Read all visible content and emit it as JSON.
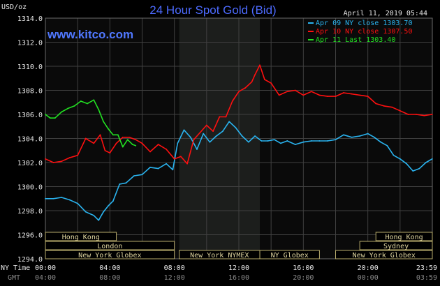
{
  "header": {
    "title": "24 Hour Spot Gold (Bid)",
    "site": "www.kitco.com",
    "datetime": "April 11, 2019 05:44",
    "unit": "USD/oz"
  },
  "time_labels": {
    "ny_title": "NY Time",
    "gmt_title": "GMT",
    "ny": [
      "00:00",
      "04:00",
      "08:00",
      "12:00",
      "16:00",
      "20:00",
      "23:59"
    ],
    "gmt": [
      "04:00",
      "08:00",
      "12:00",
      "16:00",
      "20:00",
      "00:00",
      "03:59"
    ]
  },
  "markets": [
    {
      "name": "Hong Kong",
      "start": 0,
      "end": 4.4
    },
    {
      "name": "London",
      "start": 0,
      "end": 8
    },
    {
      "name": "New York Globex",
      "start": 0,
      "end": 8
    },
    {
      "name": "New York NYMEX",
      "start": 8.3,
      "end": 13.3
    },
    {
      "name": "NY Globex",
      "start": 13.3,
      "end": 17
    },
    {
      "name": "Hong Kong",
      "start": 20.5,
      "end": 24
    },
    {
      "name": "Sydney",
      "start": 19.5,
      "end": 24
    },
    {
      "name": "New York Globex",
      "start": 18,
      "end": 24
    }
  ],
  "colors": {
    "background": "#000000",
    "plot": "#0a0a0a",
    "shade": "#1c1e1c",
    "grid": "#404040",
    "apr09": "#2ab4f0",
    "apr10": "#ff1010",
    "apr11": "#22e022",
    "title": "#4d6bff",
    "market_border": "#b8ac6c"
  },
  "chart_data": {
    "type": "line",
    "title": "24 Hour Spot Gold (Bid)",
    "ylabel": "USD/oz",
    "ylim": [
      1294,
      1314
    ],
    "yticks": [
      "1294.0",
      "1296.0",
      "1298.0",
      "1300.0",
      "1302.0",
      "1304.0",
      "1306.0",
      "1308.0",
      "1310.0",
      "1312.0",
      "1314.0"
    ],
    "xlim": [
      0,
      24
    ],
    "x_unit": "hours (NY time)",
    "shaded_region": [
      8.3,
      13.3
    ],
    "grid": true,
    "legend_position": "top-right",
    "series": [
      {
        "name": "Apr 09 NY close 1303.70",
        "color": "#2ab4f0",
        "x": [
          0,
          0.5,
          1,
          1.5,
          2,
          2.5,
          3,
          3.3,
          3.6,
          3.9,
          4.2,
          4.6,
          5,
          5.5,
          6,
          6.5,
          7,
          7.5,
          7.9,
          8.2,
          8.6,
          9,
          9.4,
          9.8,
          10.2,
          10.6,
          11,
          11.4,
          11.8,
          12.2,
          12.6,
          13,
          13.4,
          13.8,
          14.2,
          14.6,
          15,
          15.5,
          16,
          16.5,
          17,
          17.5,
          18,
          18.5,
          19,
          19.5,
          20,
          20.4,
          20.8,
          21.2,
          21.6,
          22,
          22.4,
          22.8,
          23.2,
          23.6,
          23.99
        ],
        "y": [
          1299.0,
          1299.0,
          1299.1,
          1298.9,
          1298.6,
          1297.9,
          1297.6,
          1297.2,
          1297.9,
          1298.4,
          1298.8,
          1300.2,
          1300.3,
          1300.9,
          1301.0,
          1301.6,
          1301.5,
          1301.9,
          1301.4,
          1303.6,
          1304.7,
          1304.1,
          1303.1,
          1304.4,
          1303.7,
          1304.2,
          1304.6,
          1305.4,
          1304.9,
          1304.2,
          1303.7,
          1304.2,
          1303.8,
          1303.8,
          1303.9,
          1303.6,
          1303.8,
          1303.5,
          1303.7,
          1303.8,
          1303.8,
          1303.8,
          1303.9,
          1304.3,
          1304.1,
          1304.2,
          1304.4,
          1304.1,
          1303.7,
          1303.4,
          1302.6,
          1302.3,
          1301.9,
          1301.3,
          1301.5,
          1302.0,
          1302.3
        ]
      },
      {
        "name": "Apr 10 NY close 1307.50",
        "color": "#ff1010",
        "x": [
          0,
          0.5,
          1,
          1.5,
          2,
          2.5,
          3,
          3.4,
          3.7,
          4,
          4.4,
          4.8,
          5.2,
          5.6,
          6,
          6.5,
          7,
          7.5,
          8,
          8.4,
          8.8,
          9.2,
          9.6,
          10,
          10.4,
          10.8,
          11.2,
          11.6,
          12,
          12.4,
          12.8,
          13,
          13.3,
          13.6,
          14,
          14.5,
          15,
          15.5,
          16,
          16.5,
          17,
          17.5,
          18,
          18.5,
          19,
          19.5,
          20,
          20.5,
          21,
          21.5,
          22,
          22.5,
          23,
          23.5,
          23.99
        ],
        "y": [
          1302.3,
          1302.0,
          1302.1,
          1302.4,
          1302.6,
          1304.0,
          1303.6,
          1304.3,
          1303.0,
          1302.8,
          1303.6,
          1304.1,
          1304.1,
          1303.9,
          1303.6,
          1302.9,
          1303.5,
          1303.1,
          1302.3,
          1302.5,
          1301.9,
          1303.9,
          1304.5,
          1305.1,
          1304.6,
          1305.8,
          1305.8,
          1307.1,
          1307.9,
          1308.2,
          1308.7,
          1309.3,
          1310.1,
          1308.9,
          1308.6,
          1307.6,
          1307.9,
          1308.0,
          1307.6,
          1307.9,
          1307.6,
          1307.5,
          1307.5,
          1307.8,
          1307.7,
          1307.6,
          1307.5,
          1306.9,
          1306.7,
          1306.6,
          1306.3,
          1306.0,
          1306.0,
          1305.9,
          1306.0
        ]
      },
      {
        "name": "Apr 11 Last 1303.40",
        "color": "#22e022",
        "x": [
          0,
          0.3,
          0.6,
          1,
          1.4,
          1.8,
          2.2,
          2.6,
          3,
          3.3,
          3.6,
          3.9,
          4.2,
          4.5,
          4.8,
          5.1,
          5.4,
          5.6
        ],
        "y": [
          1306.0,
          1305.7,
          1305.7,
          1306.2,
          1306.5,
          1306.7,
          1307.1,
          1306.9,
          1307.2,
          1306.4,
          1305.4,
          1304.8,
          1304.3,
          1304.3,
          1303.3,
          1303.9,
          1303.5,
          1303.4
        ]
      }
    ]
  }
}
